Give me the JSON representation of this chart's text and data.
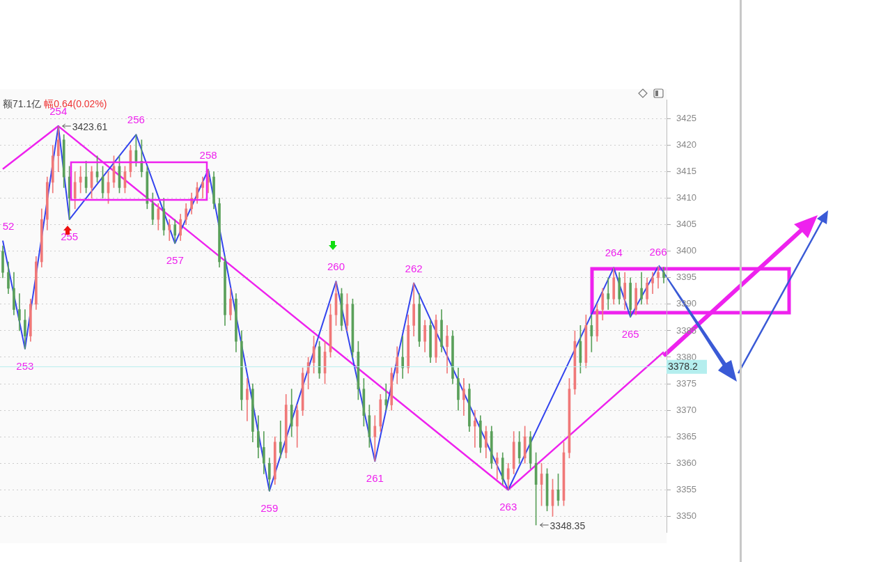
{
  "chart_data": {
    "type": "candlestick",
    "categories": [
      null,
      null,
      null,
      null,
      null,
      null,
      null,
      null,
      null,
      null,
      null,
      null,
      null,
      null,
      null,
      null,
      null,
      null,
      null,
      null,
      null,
      null,
      null,
      null,
      null,
      null,
      null,
      null,
      null,
      null,
      null,
      null,
      null,
      null,
      null,
      null,
      null,
      null,
      null,
      null,
      null,
      null,
      null,
      null,
      null,
      null,
      null,
      null,
      null,
      null,
      null,
      null,
      null,
      null,
      null,
      null,
      null,
      null,
      null,
      null,
      null,
      null,
      null,
      null,
      null,
      null,
      null,
      null,
      null,
      null,
      null,
      null,
      null,
      null,
      null,
      null,
      null,
      null,
      null,
      null,
      null,
      null,
      null,
      null,
      null,
      null,
      null,
      null,
      null,
      null,
      null,
      null,
      null,
      null,
      null,
      null,
      null,
      null,
      null,
      null,
      null,
      null,
      null,
      null,
      null,
      null,
      null,
      null,
      null,
      null,
      null,
      null,
      null,
      null,
      null,
      null,
      null,
      null,
      null,
      null
    ],
    "ohlc": [
      [
        3400,
        3401,
        3395,
        3396
      ],
      [
        3396,
        3398,
        3392,
        3393
      ],
      [
        3393,
        3396,
        3388,
        3389
      ],
      [
        3389,
        3392,
        3385,
        3387
      ],
      [
        3387,
        3389,
        3381.6,
        3384
      ],
      [
        3384,
        3391,
        3383,
        3390
      ],
      [
        3390,
        3399,
        3389,
        3398
      ],
      [
        3398,
        3408,
        3397,
        3406
      ],
      [
        3406,
        3414,
        3404,
        3413
      ],
      [
        3413,
        3420,
        3411,
        3418
      ],
      [
        3418,
        3423.61,
        3415,
        3421
      ],
      [
        3421,
        3422,
        3412,
        3414
      ],
      [
        3414,
        3416,
        3406,
        3410
      ],
      [
        3410,
        3415,
        3408,
        3413
      ],
      [
        3413,
        3416,
        3411,
        3414
      ],
      [
        3414,
        3417,
        3411,
        3412
      ],
      [
        3412,
        3416,
        3410,
        3415
      ],
      [
        3415,
        3418,
        3413,
        3414
      ],
      [
        3414,
        3416,
        3410,
        3411
      ],
      [
        3411,
        3415,
        3409,
        3413
      ],
      [
        3413,
        3418,
        3412,
        3416
      ],
      [
        3416,
        3418,
        3411,
        3412
      ],
      [
        3412,
        3416,
        3411,
        3415
      ],
      [
        3415,
        3420,
        3414,
        3419
      ],
      [
        3419,
        3422,
        3416,
        3417
      ],
      [
        3417,
        3421,
        3414,
        3415
      ],
      [
        3415,
        3416,
        3408,
        3409
      ],
      [
        3409,
        3411,
        3405,
        3406
      ],
      [
        3406,
        3409,
        3404,
        3408
      ],
      [
        3408,
        3410,
        3403,
        3404
      ],
      [
        3404,
        3406,
        3402,
        3405
      ],
      [
        3405,
        3406,
        3401.5,
        3403
      ],
      [
        3403,
        3407,
        3402,
        3406
      ],
      [
        3406,
        3409,
        3405,
        3408
      ],
      [
        3408,
        3411,
        3407,
        3410
      ],
      [
        3410,
        3413,
        3409,
        3412
      ],
      [
        3412,
        3414,
        3410,
        3413
      ],
      [
        3413,
        3415.4,
        3411,
        3414
      ],
      [
        3414,
        3415,
        3408,
        3409
      ],
      [
        3409,
        3410,
        3397,
        3398
      ],
      [
        3398,
        3399,
        3386,
        3388
      ],
      [
        3388,
        3393,
        3387,
        3391
      ],
      [
        3391,
        3392,
        3381,
        3383
      ],
      [
        3383,
        3385,
        3370,
        3372
      ],
      [
        3372,
        3376,
        3368,
        3374
      ],
      [
        3374,
        3375,
        3364,
        3366
      ],
      [
        3366,
        3369,
        3361,
        3363
      ],
      [
        3363,
        3366,
        3358,
        3360
      ],
      [
        3360,
        3361,
        3354.75,
        3357
      ],
      [
        3357,
        3365,
        3356,
        3364
      ],
      [
        3364,
        3368,
        3361,
        3362
      ],
      [
        3362,
        3373,
        3361,
        3371
      ],
      [
        3371,
        3374,
        3365,
        3367
      ],
      [
        3367,
        3371,
        3363,
        3370
      ],
      [
        3370,
        3378,
        3369,
        3377
      ],
      [
        3377,
        3380,
        3374,
        3379
      ],
      [
        3379,
        3384,
        3377,
        3382
      ],
      [
        3382,
        3383,
        3376,
        3377
      ],
      [
        3377,
        3383,
        3375,
        3381
      ],
      [
        3381,
        3390,
        3380,
        3388
      ],
      [
        3388,
        3394.25,
        3386,
        3392
      ],
      [
        3392,
        3393,
        3385,
        3386
      ],
      [
        3386,
        3392,
        3385,
        3390
      ],
      [
        3390,
        3391,
        3380,
        3381
      ],
      [
        3381,
        3383,
        3372,
        3374
      ],
      [
        3374,
        3376,
        3367,
        3369
      ],
      [
        3369,
        3371,
        3363,
        3365
      ],
      [
        3365,
        3369,
        3360.4,
        3367
      ],
      [
        3367,
        3373,
        3366,
        3372
      ],
      [
        3372,
        3375,
        3370,
        3371
      ],
      [
        3371,
        3378,
        3370,
        3377
      ],
      [
        3377,
        3382,
        3375,
        3380
      ],
      [
        3380,
        3384,
        3376,
        3378
      ],
      [
        3378,
        3388,
        3377,
        3386
      ],
      [
        3386,
        3394,
        3384,
        3390
      ],
      [
        3390,
        3392,
        3382,
        3383
      ],
      [
        3383,
        3387,
        3381,
        3386
      ],
      [
        3386,
        3387,
        3379,
        3380
      ],
      [
        3380,
        3388,
        3379,
        3387
      ],
      [
        3387,
        3389,
        3381,
        3382
      ],
      [
        3382,
        3386,
        3377,
        3384
      ],
      [
        3384,
        3385,
        3375,
        3376
      ],
      [
        3376,
        3378,
        3370,
        3372
      ],
      [
        3372,
        3376,
        3369,
        3374
      ],
      [
        3374,
        3375,
        3366,
        3367
      ],
      [
        3367,
        3370,
        3363,
        3368
      ],
      [
        3368,
        3369,
        3362,
        3363
      ],
      [
        3363,
        3367,
        3361,
        3366
      ],
      [
        3366,
        3367,
        3359,
        3360
      ],
      [
        3360,
        3362,
        3357,
        3361
      ],
      [
        3361,
        3362,
        3356,
        3357
      ],
      [
        3357,
        3360,
        3355,
        3359
      ],
      [
        3359,
        3366,
        3358,
        3364
      ],
      [
        3364,
        3366,
        3360,
        3361
      ],
      [
        3361,
        3367,
        3360,
        3365
      ],
      [
        3365,
        3366,
        3359,
        3360
      ],
      [
        3360,
        3362,
        3348.35,
        3356
      ],
      [
        3356,
        3360,
        3352,
        3358
      ],
      [
        3358,
        3359,
        3351,
        3352
      ],
      [
        3352,
        3357,
        3350,
        3355
      ],
      [
        3355,
        3358,
        3352,
        3353
      ],
      [
        3353,
        3364,
        3352,
        3362
      ],
      [
        3362,
        3376,
        3361,
        3374
      ],
      [
        3374,
        3385,
        3373,
        3383
      ],
      [
        3383,
        3386,
        3377,
        3379
      ],
      [
        3379,
        3388,
        3378,
        3386
      ],
      [
        3386,
        3388,
        3381,
        3384
      ],
      [
        3384,
        3390,
        3383,
        3389
      ],
      [
        3389,
        3393,
        3387,
        3392
      ],
      [
        3392,
        3395,
        3389,
        3391
      ],
      [
        3391,
        3396.9,
        3390,
        3395
      ],
      [
        3395,
        3396,
        3390,
        3391
      ],
      [
        3391,
        3396,
        3389,
        3394
      ],
      [
        3394,
        3395,
        3387.6,
        3389
      ],
      [
        3389,
        3394,
        3388,
        3393
      ],
      [
        3393,
        3396,
        3390,
        3391
      ],
      [
        3391,
        3395,
        3390,
        3394
      ],
      [
        3394,
        3396,
        3392,
        3395
      ],
      [
        3395,
        3397.1,
        3393,
        3396
      ],
      [
        3396,
        3397,
        3394,
        3395
      ]
    ],
    "series": [
      {
        "type": "line",
        "color": "#3344ee",
        "values": [
          3402,
          null,
          null,
          null,
          3381.6,
          null,
          null,
          null,
          null,
          null,
          3423.6,
          null,
          3406,
          null,
          null,
          null,
          null,
          null,
          null,
          null,
          null,
          null,
          null,
          null,
          3422,
          null,
          null,
          null,
          null,
          null,
          null,
          3401.5,
          null,
          null,
          null,
          null,
          null,
          3415.4,
          null,
          null,
          null,
          null,
          null,
          null,
          null,
          null,
          null,
          null,
          3354.8,
          null,
          null,
          null,
          null,
          null,
          null,
          null,
          null,
          null,
          null,
          null,
          3394.3,
          null,
          null,
          null,
          null,
          null,
          null,
          3360.4,
          null,
          null,
          null,
          null,
          null,
          null,
          3394,
          null,
          null,
          null,
          null,
          null,
          null,
          null,
          null,
          null,
          null,
          null,
          null,
          null,
          null,
          null,
          null,
          3355,
          null,
          null,
          null,
          null,
          null,
          null,
          null,
          null,
          null,
          null,
          null,
          null,
          null,
          null,
          null,
          null,
          null,
          null,
          3396.9,
          null,
          null,
          3387.6,
          null,
          null,
          null,
          null,
          3397.1,
          null
        ]
      },
      {
        "type": "line",
        "color": "#ee22ee",
        "values": [
          3415.5,
          null,
          null,
          null,
          null,
          null,
          null,
          null,
          null,
          null,
          3423.6,
          null,
          null,
          null,
          null,
          null,
          null,
          null,
          null,
          null,
          null,
          null,
          null,
          null,
          null,
          null,
          null,
          null,
          null,
          null,
          null,
          null,
          null,
          null,
          null,
          null,
          null,
          null,
          null,
          null,
          null,
          null,
          null,
          null,
          null,
          null,
          null,
          null,
          null,
          null,
          null,
          null,
          null,
          null,
          null,
          null,
          null,
          null,
          null,
          null,
          null,
          null,
          null,
          null,
          null,
          null,
          null,
          null,
          null,
          null,
          null,
          null,
          null,
          null,
          null,
          null,
          null,
          null,
          null,
          null,
          null,
          null,
          null,
          null,
          null,
          null,
          null,
          null,
          null,
          null,
          null,
          3355,
          null,
          null,
          null,
          null,
          null,
          null,
          null,
          null,
          null,
          null,
          null,
          null,
          null,
          null,
          null,
          null,
          null,
          null,
          null,
          null,
          null,
          null,
          null,
          null,
          null,
          null,
          null,
          3381
        ]
      }
    ],
    "ylim": [
      3347,
      3428.5
    ],
    "yticks": [
      3350,
      3355,
      3360,
      3365,
      3370,
      3375,
      3380,
      3385,
      3390,
      3395,
      3400,
      3405,
      3410,
      3415,
      3420,
      3425
    ],
    "tick_labels": "y",
    "grid": "y",
    "legend": false,
    "marker": "none",
    "line_style": "solid",
    "ref_lines": [
      {
        "axis": "y",
        "value": 3378.2,
        "label": "3378.2",
        "color": "#b4eeee"
      }
    ],
    "annotations": [
      "额71.1亿",
      "幅0.64(0.02%)",
      "3423.61",
      "3348.35",
      "52",
      "253",
      "254",
      "255",
      "256",
      "257",
      "258",
      "259",
      "260",
      "261",
      "262",
      "263",
      "264",
      "265",
      "266"
    ]
  }
}
